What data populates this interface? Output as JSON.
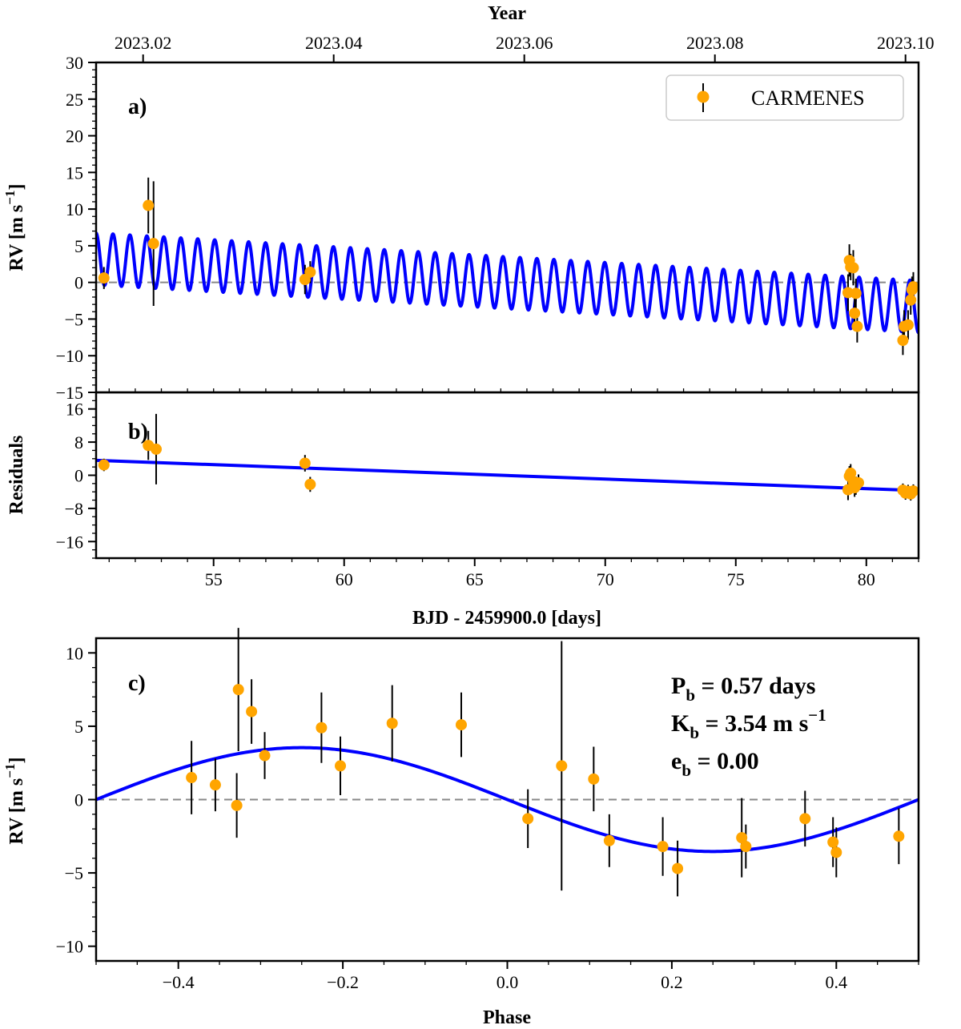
{
  "chart_data": [
    {
      "panel": "a",
      "type": "scatter",
      "panel_label": "a)",
      "title": "",
      "xlabel_top": "Year",
      "ylabel": "RV [m s",
      "ylabel_sup": "−1",
      "ylabel_end": "]",
      "xlim": [
        50.5,
        82.0
      ],
      "ylim": [
        -15,
        30
      ],
      "yticks": [
        30,
        25,
        20,
        15,
        10,
        5,
        0,
        -5,
        -10,
        -15
      ],
      "ytick_labels": [
        "30",
        "25",
        "20",
        "15",
        "10",
        "5",
        "0",
        "−5",
        "−10",
        "−15"
      ],
      "top_ticks": [
        52.3,
        59.6,
        66.9,
        74.2,
        81.5
      ],
      "top_tick_labels": [
        "2023.02",
        "2023.04",
        "2023.06",
        "2023.08",
        "2023.10"
      ],
      "legend": {
        "label": "CARMENES",
        "placement": "top-right"
      },
      "series": [
        {
          "name": "CARMENES",
          "color": "#FFA500",
          "x": [
            50.8,
            52.5,
            52.7,
            58.5,
            58.7,
            79.3,
            79.35,
            79.4,
            79.5,
            79.55,
            79.6,
            79.65,
            81.4,
            81.45,
            81.6,
            81.7,
            81.75,
            81.8
          ],
          "y": [
            0.6,
            10.5,
            5.3,
            0.4,
            1.4,
            -1.4,
            3.0,
            2.1,
            2.0,
            -4.2,
            -1.5,
            -6.0,
            -7.9,
            -6.0,
            -5.8,
            -2.4,
            -1.0,
            -0.6
          ],
          "yerr": [
            1.5,
            3.8,
            8.5,
            2.0,
            1.5,
            2.5,
            2.2,
            1.8,
            2.4,
            2.4,
            2.0,
            2.2,
            2.0,
            2.2,
            2.0,
            2.0,
            1.8,
            2.0
          ]
        }
      ],
      "model": {
        "name": "Keplerian + trend",
        "color": "#0000FF",
        "period_days": 0.57,
        "K": 3.54,
        "trend_start": 3.2,
        "trend_end": -3.3
      }
    },
    {
      "panel": "b",
      "type": "scatter",
      "panel_label": "b)",
      "xlabel": "BJD - 2459900.0 [days]",
      "ylabel": "Residuals",
      "xlim": [
        50.5,
        82.0
      ],
      "ylim": [
        -20,
        20
      ],
      "xticks": [
        55,
        60,
        65,
        70,
        75,
        80
      ],
      "xtick_labels": [
        "55",
        "60",
        "65",
        "70",
        "75",
        "80"
      ],
      "yticks": [
        16,
        8,
        0,
        -8,
        -16
      ],
      "ytick_labels": [
        "16",
        "8",
        "0",
        "−8",
        "−16"
      ],
      "series": [
        {
          "name": "CARMENES",
          "color": "#FFA500",
          "x": [
            50.8,
            52.5,
            52.8,
            58.5,
            58.7,
            79.3,
            79.35,
            79.4,
            79.5,
            79.55,
            79.6,
            79.7,
            81.4,
            81.5,
            81.6,
            81.7,
            81.8
          ],
          "y": [
            2.5,
            7.2,
            6.3,
            2.9,
            -2.2,
            -3.5,
            -0.2,
            0.5,
            -1.5,
            -3.0,
            -2.5,
            -1.8,
            -3.6,
            -4.3,
            -3.9,
            -4.5,
            -3.8
          ],
          "yerr": [
            1.5,
            3.5,
            8.5,
            2.0,
            1.8,
            2.5,
            2.4,
            2.2,
            2.4,
            2.2,
            2.2,
            2.0,
            1.6,
            1.6,
            1.6,
            1.6,
            1.6
          ]
        }
      ],
      "model": {
        "name": "linear trend",
        "color": "#0000FF",
        "x": [
          50.5,
          82.0
        ],
        "y": [
          3.6,
          -3.7
        ]
      }
    },
    {
      "panel": "c",
      "type": "scatter",
      "panel_label": "c)",
      "xlabel": "Phase",
      "ylabel": "RV [m s",
      "ylabel_sup": "−1",
      "ylabel_end": "]",
      "xlim": [
        -0.5,
        0.5
      ],
      "ylim": [
        -11,
        11
      ],
      "xticks": [
        -0.4,
        -0.2,
        0.0,
        0.2,
        0.4
      ],
      "xtick_labels": [
        "−0.4",
        "−0.2",
        "0.0",
        "0.2",
        "0.4"
      ],
      "yticks": [
        10,
        5,
        0,
        -5,
        -10
      ],
      "ytick_labels": [
        "10",
        "5",
        "0",
        "−5",
        "−10"
      ],
      "annotations": {
        "p_main": "P",
        "p_sub": "b",
        "p_rest": " = 0.57 days",
        "k_main": "K",
        "k_sub": "b",
        "k_rest": " = 3.54 m s",
        "k_sup": "−1",
        "e_main": "e",
        "e_sub": "b",
        "e_rest": " = 0.00"
      },
      "series": [
        {
          "name": "CARMENES",
          "color": "#FFA500",
          "x": [
            -0.384,
            -0.355,
            -0.329,
            -0.327,
            -0.311,
            -0.295,
            -0.226,
            -0.203,
            -0.14,
            -0.056,
            0.025,
            0.066,
            0.105,
            0.124,
            0.189,
            0.207,
            0.285,
            0.29,
            0.362,
            0.396,
            0.4,
            0.476
          ],
          "y": [
            1.5,
            1.0,
            -0.4,
            7.5,
            6.0,
            3.0,
            4.9,
            2.3,
            5.2,
            5.1,
            -1.3,
            2.3,
            1.4,
            -2.8,
            -3.2,
            -4.7,
            -2.6,
            -3.2,
            -1.3,
            -2.9,
            -3.6,
            -2.5
          ],
          "yerr": [
            2.5,
            1.8,
            2.2,
            4.2,
            2.2,
            1.6,
            2.4,
            2.0,
            2.6,
            2.2,
            2.0,
            8.5,
            2.2,
            1.8,
            2.0,
            1.9,
            2.7,
            1.5,
            1.9,
            1.7,
            1.7,
            1.9
          ]
        }
      ],
      "model": {
        "name": "Keplerian",
        "color": "#0000FF",
        "K": 3.54,
        "e": 0.0
      }
    }
  ]
}
